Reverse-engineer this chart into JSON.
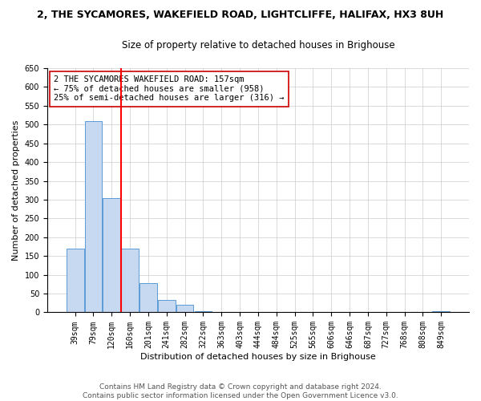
{
  "title": "2, THE SYCAMORES, WAKEFIELD ROAD, LIGHTCLIFFE, HALIFAX, HX3 8UH",
  "subtitle": "Size of property relative to detached houses in Brighouse",
  "xlabel": "Distribution of detached houses by size in Brighouse",
  "ylabel": "Number of detached properties",
  "categories": [
    "39sqm",
    "79sqm",
    "120sqm",
    "160sqm",
    "201sqm",
    "241sqm",
    "282sqm",
    "322sqm",
    "363sqm",
    "403sqm",
    "444sqm",
    "484sqm",
    "525sqm",
    "565sqm",
    "606sqm",
    "646sqm",
    "687sqm",
    "727sqm",
    "768sqm",
    "808sqm",
    "849sqm"
  ],
  "values": [
    170,
    510,
    305,
    170,
    78,
    32,
    20,
    4,
    0,
    0,
    0,
    0,
    0,
    0,
    0,
    0,
    0,
    0,
    0,
    0,
    4
  ],
  "bar_color": "#c6d9f0",
  "bar_edge_color": "#5b9bd5",
  "vline_color": "red",
  "annotation_text": "2 THE SYCAMORES WAKEFIELD ROAD: 157sqm\n← 75% of detached houses are smaller (958)\n25% of semi-detached houses are larger (316) →",
  "annotation_box_color": "white",
  "annotation_box_edge": "#cc0000",
  "ylim": [
    0,
    650
  ],
  "yticks": [
    0,
    50,
    100,
    150,
    200,
    250,
    300,
    350,
    400,
    450,
    500,
    550,
    600,
    650
  ],
  "footer_line1": "Contains HM Land Registry data © Crown copyright and database right 2024.",
  "footer_line2": "Contains public sector information licensed under the Open Government Licence v3.0.",
  "title_fontsize": 9,
  "subtitle_fontsize": 8.5,
  "xlabel_fontsize": 8,
  "ylabel_fontsize": 8,
  "tick_fontsize": 7,
  "footer_fontsize": 6.5,
  "annotation_fontsize": 7.5
}
